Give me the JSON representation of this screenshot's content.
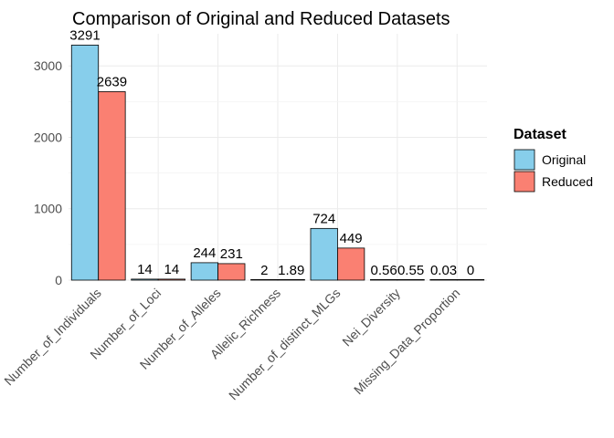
{
  "chart_data": {
    "type": "bar",
    "title": "Comparison of Original and Reduced Datasets",
    "xlabel": "",
    "ylabel": "",
    "categories": [
      "Number_of_Individuals",
      "Number_of_Loci",
      "Number_of_Alleles",
      "Allelic_Richness",
      "Number_of_distinct_MLGs",
      "Nei_Diversity",
      "Missing_Data_Proportion"
    ],
    "series": [
      {
        "name": "Original",
        "color": "#87ceeb",
        "values": [
          3291,
          14,
          244,
          2,
          724,
          0.56,
          0.03
        ],
        "labels": [
          "3291",
          "14",
          "244",
          "2",
          "724",
          "0.56",
          "0.03"
        ]
      },
      {
        "name": "Reduced",
        "color": "#fa8072",
        "values": [
          2639,
          14,
          231,
          1.89,
          449,
          0.55,
          0
        ],
        "labels": [
          "2639",
          "14",
          "231",
          "1.89",
          "449",
          "0.55",
          "0"
        ]
      }
    ],
    "ylim": [
      0,
      3450
    ],
    "yticks": [
      0,
      1000,
      2000,
      3000
    ],
    "ytick_labels": [
      "0",
      "1000",
      "2000",
      "3000"
    ],
    "grid": true,
    "legend": {
      "title": "Dataset",
      "position": "right"
    }
  }
}
